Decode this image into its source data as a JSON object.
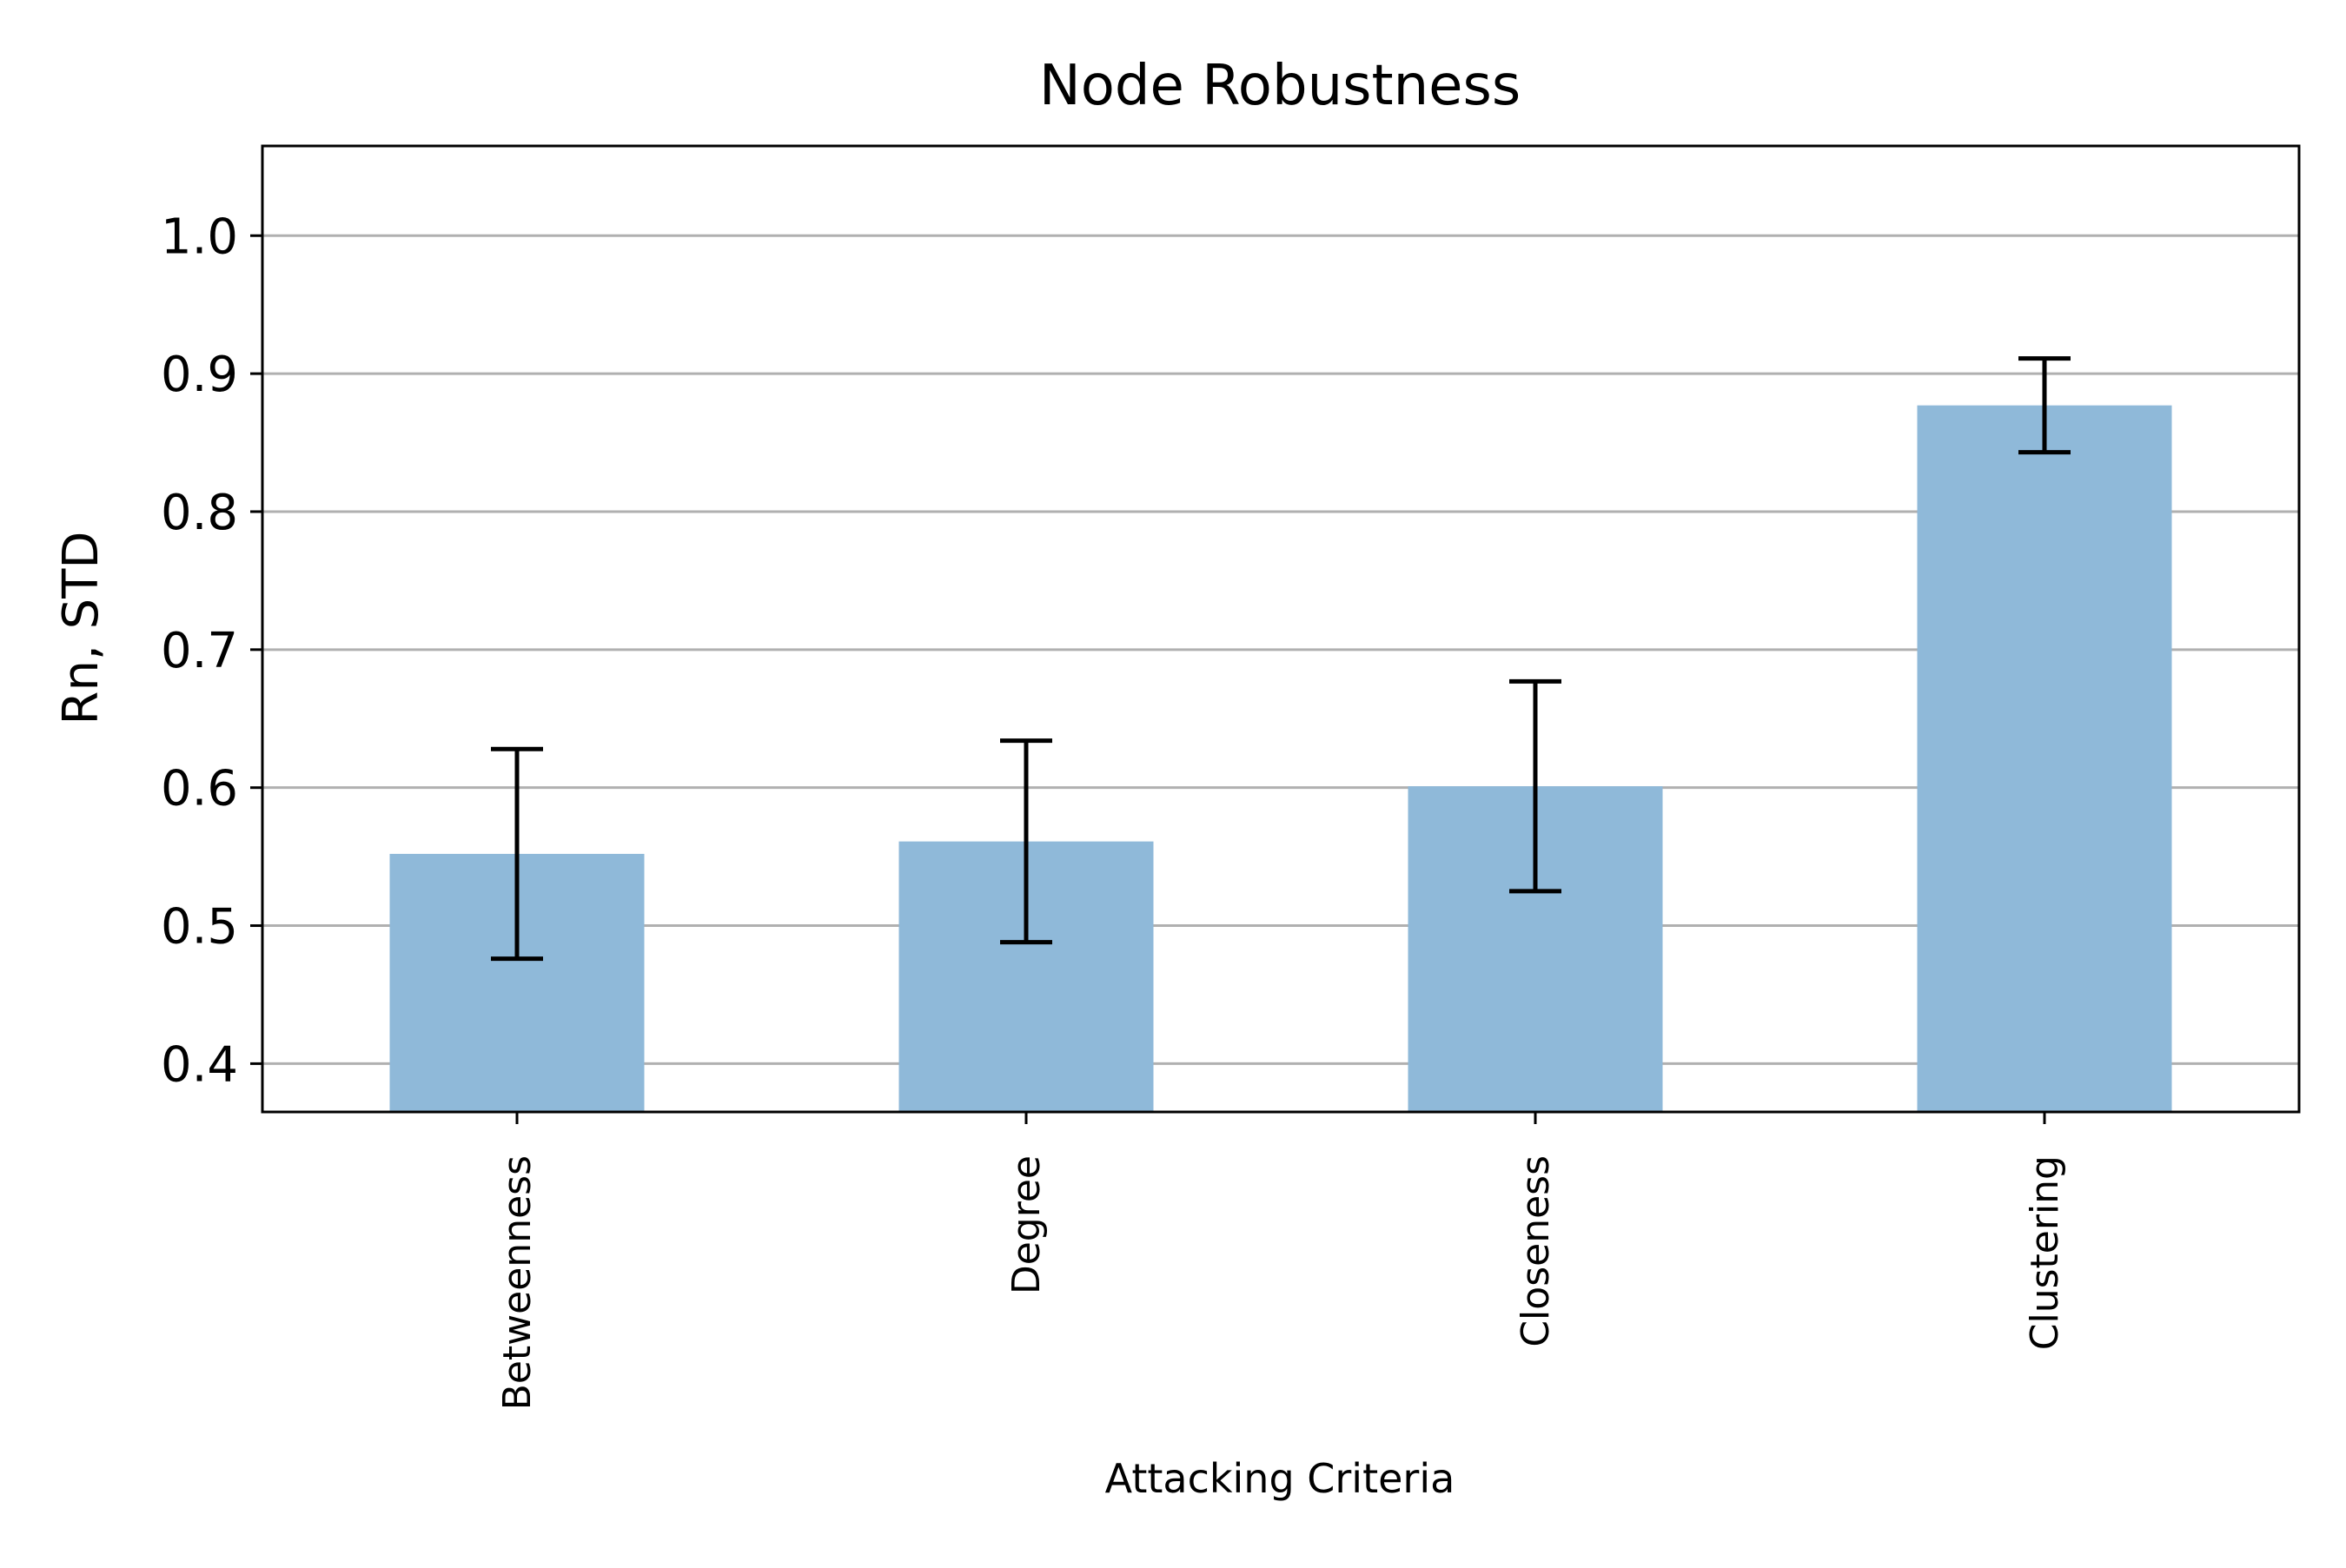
{
  "chart_data": {
    "type": "bar",
    "title": "Node Robustness",
    "xlabel": "Attacking Criteria",
    "ylabel": "Rn, STD",
    "categories": [
      "Betweenness",
      "Degree",
      "Closeness",
      "Clustering"
    ],
    "values": [
      0.552,
      0.561,
      0.601,
      0.877
    ],
    "errors": [
      0.076,
      0.073,
      0.076,
      0.034
    ],
    "ylim": [
      0.365,
      1.065
    ],
    "yticks": [
      0.4,
      0.5,
      0.6,
      0.7,
      0.8,
      0.9,
      1.0
    ],
    "ytick_labels": [
      "0.4",
      "0.5",
      "0.6",
      "0.7",
      "0.8",
      "0.9",
      "1.0"
    ],
    "grid": "y",
    "bar_color": "#8fb9d9",
    "error_color": "#000000",
    "grid_color": "#b0b0b0"
  }
}
